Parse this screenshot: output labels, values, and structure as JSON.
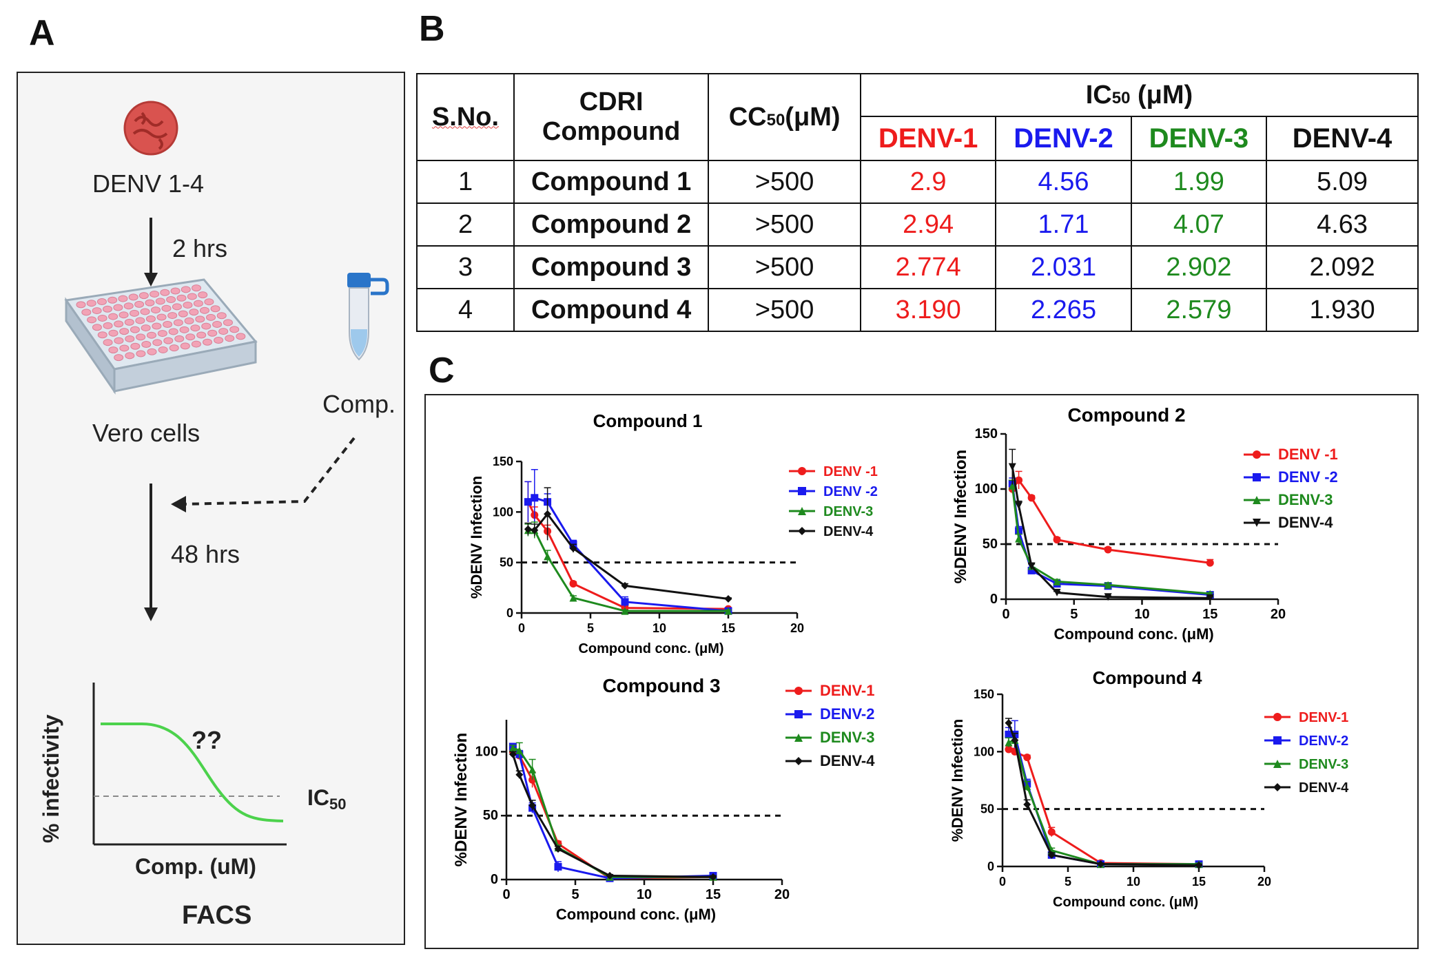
{
  "panel_labels": {
    "a": "A",
    "b": "B",
    "c": "C"
  },
  "panelA": {
    "virus_label": "DENV 1-4",
    "step1_time": "2 hrs",
    "cells_label": "Vero cells",
    "compound_label": "Comp.",
    "step2_time": "48 hrs",
    "qmark": "??",
    "plot_ylabel": "% infectivity",
    "plot_xlabel": "Comp. (uM)",
    "ic50_label": "IC",
    "ic50_sub": "50",
    "readout": "FACS"
  },
  "table": {
    "sno_header": "S.No.",
    "compound_header_l1": "CDRI",
    "compound_header_l2": "Compound",
    "cc50_header": "CC",
    "cc50_sub": "50",
    "cc50_unit": "(μM)",
    "ic50_header": "IC",
    "ic50_sub": "50",
    "ic50_unit": " (μM)",
    "serotypes": [
      "DENV-1",
      "DENV-2",
      "DENV-3",
      "DENV-4"
    ],
    "serotype_colors": [
      "#ee1c1c",
      "#1a1aee",
      "#1e8a1e",
      "#111111"
    ],
    "rows": [
      {
        "sno": "1",
        "compound": "Compound 1",
        "cc50": ">500",
        "ic50": [
          "2.9",
          "4.56",
          "1.99",
          "5.09"
        ]
      },
      {
        "sno": "2",
        "compound": "Compound 2",
        "cc50": ">500",
        "ic50": [
          "2.94",
          "1.71",
          "4.07",
          "4.63"
        ]
      },
      {
        "sno": "3",
        "compound": "Compound 3",
        "cc50": ">500",
        "ic50": [
          "2.774",
          "2.031",
          "2.902",
          "2.092"
        ]
      },
      {
        "sno": "4",
        "compound": "Compound 4",
        "cc50": ">500",
        "ic50": [
          "3.190",
          "2.265",
          "2.579",
          "1.930"
        ]
      }
    ]
  },
  "chart_data": [
    {
      "type": "line",
      "title": "Compound 1",
      "xlabel": "Compound conc. (μM)",
      "ylabel": "%DENV Infection",
      "xlim": [
        0,
        20
      ],
      "ylim": [
        0,
        150
      ],
      "xticks": [
        0,
        5,
        10,
        15,
        20
      ],
      "yticks": [
        0,
        50,
        100,
        150
      ],
      "reference_line": 50,
      "x": [
        0.47,
        0.94,
        1.88,
        3.75,
        7.5,
        15
      ],
      "series": [
        {
          "name": "DENV -1",
          "color": "#ee1c1c",
          "marker": "circle",
          "values": [
            110,
            97,
            81,
            29,
            5,
            4
          ],
          "errors": [
            20,
            8,
            6,
            2,
            2,
            1
          ]
        },
        {
          "name": "DENV -2",
          "color": "#1a1aee",
          "marker": "square",
          "values": [
            110,
            114,
            110,
            68,
            11,
            2
          ],
          "errors": [
            20,
            28,
            8,
            4,
            5,
            1
          ]
        },
        {
          "name": "DENV-3",
          "color": "#1e8a1e",
          "marker": "triangle-up",
          "values": [
            82,
            82,
            56,
            15,
            2,
            2
          ],
          "errors": [
            6,
            8,
            6,
            2,
            1,
            1
          ]
        },
        {
          "name": "DENV-4",
          "color": "#111111",
          "marker": "diamond",
          "values": [
            83,
            82,
            98,
            64,
            27,
            14
          ],
          "errors": [
            6,
            6,
            26,
            4,
            2,
            1
          ]
        }
      ]
    },
    {
      "type": "line",
      "title": "Compound 2",
      "xlabel": "Compound conc. (μM)",
      "ylabel": "%DENV Infection",
      "xlim": [
        0,
        20
      ],
      "ylim": [
        0,
        150
      ],
      "xticks": [
        0,
        5,
        10,
        15,
        20
      ],
      "yticks": [
        0,
        50,
        100,
        150
      ],
      "reference_line": 50,
      "x": [
        0.47,
        0.94,
        1.88,
        3.75,
        7.5,
        15
      ],
      "series": [
        {
          "name": "DENV -1",
          "color": "#ee1c1c",
          "marker": "circle",
          "values": [
            100,
            108,
            92,
            54,
            45,
            33
          ],
          "errors": [
            4,
            8,
            2,
            2,
            2,
            3
          ]
        },
        {
          "name": "DENV -2",
          "color": "#1a1aee",
          "marker": "square",
          "values": [
            105,
            62,
            26,
            14,
            12,
            4
          ],
          "errors": [
            5,
            4,
            2,
            3,
            3,
            1
          ]
        },
        {
          "name": "DENV-3",
          "color": "#1e8a1e",
          "marker": "triangle-up",
          "values": [
            103,
            55,
            30,
            16,
            13,
            5
          ],
          "errors": [
            5,
            4,
            2,
            2,
            2,
            1
          ]
        },
        {
          "name": "DENV-4",
          "color": "#111111",
          "marker": "triangle-down",
          "values": [
            120,
            85,
            30,
            6,
            2,
            1
          ],
          "errors": [
            16,
            4,
            2,
            1,
            1,
            1
          ]
        }
      ]
    },
    {
      "type": "line",
      "title": "Compound 3",
      "xlabel": "Compound conc. (μM)",
      "ylabel": "%DENV Infection",
      "xlim": [
        0,
        20
      ],
      "ylim": [
        0,
        125
      ],
      "xticks": [
        0,
        5,
        10,
        15,
        20
      ],
      "yticks": [
        0,
        50,
        100
      ],
      "reference_line": 50,
      "x": [
        0.47,
        0.94,
        1.88,
        3.75,
        7.5,
        15
      ],
      "series": [
        {
          "name": "DENV-1",
          "color": "#ee1c1c",
          "marker": "circle",
          "values": [
            100,
            97,
            78,
            28,
            1,
            2
          ],
          "errors": [
            2,
            3,
            6,
            2,
            1,
            1
          ]
        },
        {
          "name": "DENV-2",
          "color": "#1a1aee",
          "marker": "square",
          "values": [
            104,
            98,
            56,
            10,
            1,
            3
          ],
          "errors": [
            2,
            3,
            4,
            4,
            1,
            1
          ]
        },
        {
          "name": "DENV-3",
          "color": "#1e8a1e",
          "marker": "triangle-up",
          "values": [
            103,
            101,
            86,
            25,
            2,
            2
          ],
          "errors": [
            2,
            6,
            8,
            2,
            1,
            1
          ]
        },
        {
          "name": "DENV-4",
          "color": "#111111",
          "marker": "diamond",
          "values": [
            98,
            82,
            58,
            24,
            3,
            2
          ],
          "errors": [
            2,
            3,
            4,
            2,
            1,
            1
          ]
        }
      ]
    },
    {
      "type": "line",
      "title": "Compound 4",
      "xlabel": "Compound conc. (μM)",
      "ylabel": "%DENV Infection",
      "xlim": [
        0,
        20
      ],
      "ylim": [
        0,
        150
      ],
      "xticks": [
        0,
        5,
        10,
        15,
        20
      ],
      "yticks": [
        0,
        50,
        100,
        150
      ],
      "reference_line": 50,
      "x": [
        0.47,
        0.94,
        1.88,
        3.75,
        7.5,
        15
      ],
      "series": [
        {
          "name": "DENV-1",
          "color": "#ee1c1c",
          "marker": "circle",
          "values": [
            102,
            100,
            95,
            30,
            3,
            2
          ],
          "errors": [
            3,
            3,
            2,
            4,
            1,
            1
          ]
        },
        {
          "name": "DENV-2",
          "color": "#1a1aee",
          "marker": "square",
          "values": [
            115,
            115,
            72,
            10,
            2,
            2
          ],
          "errors": [
            6,
            12,
            4,
            2,
            1,
            1
          ]
        },
        {
          "name": "DENV-3",
          "color": "#1e8a1e",
          "marker": "triangle-up",
          "values": [
            108,
            110,
            70,
            14,
            2,
            2
          ],
          "errors": [
            4,
            6,
            4,
            2,
            1,
            1
          ]
        },
        {
          "name": "DENV-4",
          "color": "#111111",
          "marker": "diamond",
          "values": [
            125,
            110,
            54,
            10,
            2,
            1
          ],
          "errors": [
            4,
            6,
            4,
            2,
            1,
            1
          ]
        }
      ]
    }
  ]
}
